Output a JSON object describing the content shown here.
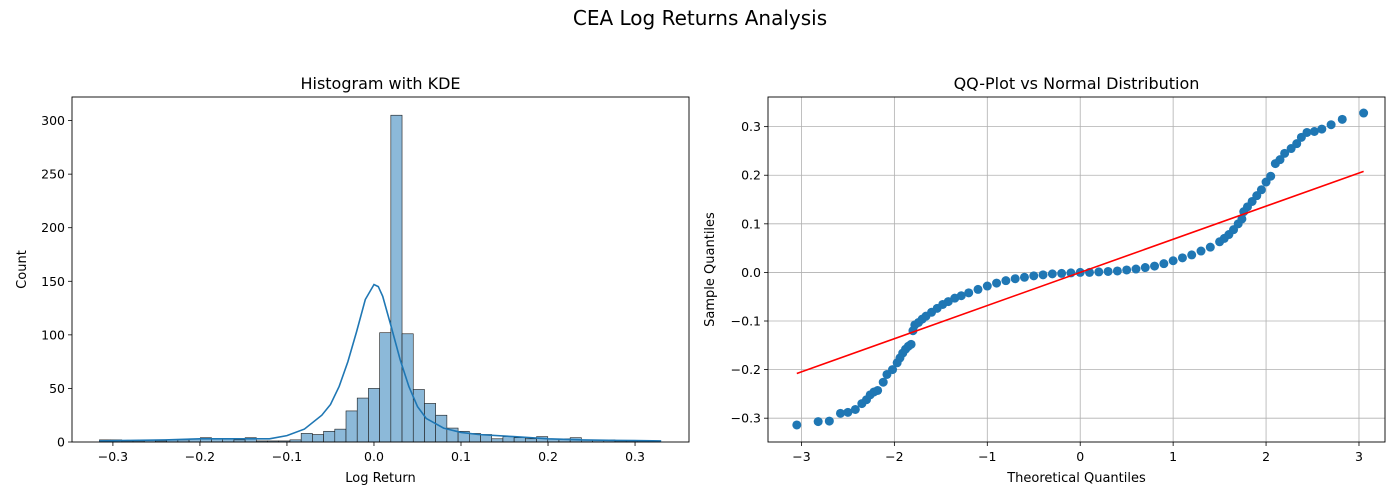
{
  "figure": {
    "title": "CEA Log Returns Analysis"
  },
  "colors": {
    "bar_fill": "#8cb9d9",
    "bar_edge": "#1a1a1a",
    "kde_line": "#1f77b4",
    "points": "#1f77b4",
    "ref_line": "#ff0000",
    "grid": "#b0b0b0"
  },
  "chart_data": [
    {
      "type": "bar",
      "subtype": "histogram-with-kde",
      "title": "Histogram with KDE",
      "xlabel": "Log Return",
      "ylabel": "Count",
      "xlim": [
        -0.347,
        0.362
      ],
      "ylim": [
        0,
        322
      ],
      "xticks": [
        -0.3,
        -0.2,
        -0.1,
        0.0,
        0.1,
        0.2,
        0.3
      ],
      "xtick_labels": [
        "−0.3",
        "−0.2",
        "−0.1",
        "0.0",
        "0.1",
        "0.2",
        "0.3"
      ],
      "yticks": [
        0,
        50,
        100,
        150,
        200,
        250,
        300
      ],
      "ytick_labels": [
        "0",
        "50",
        "100",
        "150",
        "200",
        "250",
        "300"
      ],
      "grid": false,
      "bin_start": -0.3155,
      "bin_width": 0.01288,
      "counts": [
        2,
        2,
        1,
        1,
        2,
        1,
        2,
        2,
        3,
        4,
        3,
        3,
        2,
        4,
        1,
        1,
        1,
        2,
        8,
        7,
        10,
        12,
        29,
        41,
        50,
        102,
        305,
        101,
        49,
        36,
        25,
        13,
        10,
        8,
        7,
        3,
        5,
        4,
        3,
        5,
        3,
        3,
        4,
        2,
        2,
        2,
        1,
        1,
        1,
        1
      ],
      "kde": {
        "x": [
          -0.3155,
          -0.28,
          -0.24,
          -0.2,
          -0.16,
          -0.12,
          -0.1,
          -0.08,
          -0.06,
          -0.05,
          -0.04,
          -0.03,
          -0.02,
          -0.01,
          0.0,
          0.005,
          0.01,
          0.02,
          0.03,
          0.04,
          0.05,
          0.06,
          0.08,
          0.1,
          0.12,
          0.16,
          0.2,
          0.24,
          0.28,
          0.33
        ],
        "y": [
          1,
          1.5,
          2,
          3,
          3,
          3,
          6,
          12,
          25,
          35,
          52,
          75,
          103,
          133,
          147,
          145,
          136,
          107,
          77,
          52,
          33,
          22,
          13,
          9,
          7,
          5,
          3,
          2,
          1.5,
          1
        ]
      }
    },
    {
      "type": "scatter",
      "subtype": "qq-plot",
      "title": "QQ-Plot vs Normal Distribution",
      "xlabel": "Theoretical Quantiles",
      "ylabel": "Sample Quantiles",
      "xlim": [
        -3.36,
        3.28
      ],
      "ylim": [
        -0.349,
        0.361
      ],
      "xticks": [
        -3,
        -2,
        -1,
        0,
        1,
        2,
        3
      ],
      "xtick_labels": [
        "−3",
        "−2",
        "−1",
        "0",
        "1",
        "2",
        "3"
      ],
      "yticks": [
        -0.3,
        -0.2,
        -0.1,
        0.0,
        0.1,
        0.2,
        0.3
      ],
      "ytick_labels": [
        "−0.3",
        "−0.2",
        "−0.1",
        "0.0",
        "0.1",
        "0.2",
        "0.3"
      ],
      "grid": true,
      "reference_line": {
        "x": [
          -3.05,
          3.05
        ],
        "y": [
          -0.208,
          0.208
        ]
      },
      "curve_points": [
        [
          -3.05,
          -0.314
        ],
        [
          -2.82,
          -0.307
        ],
        [
          -2.7,
          -0.306
        ],
        [
          -2.58,
          -0.29
        ],
        [
          -2.5,
          -0.288
        ],
        [
          -2.42,
          -0.282
        ],
        [
          -2.35,
          -0.27
        ],
        [
          -2.3,
          -0.262
        ],
        [
          -2.26,
          -0.252
        ],
        [
          -2.22,
          -0.246
        ],
        [
          -2.18,
          -0.243
        ],
        [
          -2.12,
          -0.226
        ],
        [
          -2.08,
          -0.21
        ],
        [
          -2.02,
          -0.2
        ],
        [
          -1.97,
          -0.186
        ],
        [
          -1.94,
          -0.176
        ],
        [
          -1.91,
          -0.166
        ],
        [
          -1.88,
          -0.158
        ],
        [
          -1.85,
          -0.152
        ],
        [
          -1.82,
          -0.148
        ],
        [
          -1.8,
          -0.12
        ],
        [
          -1.78,
          -0.108
        ],
        [
          -1.74,
          -0.103
        ],
        [
          -1.7,
          -0.096
        ],
        [
          -1.66,
          -0.09
        ],
        [
          -1.6,
          -0.082
        ],
        [
          -1.54,
          -0.074
        ],
        [
          -1.48,
          -0.066
        ],
        [
          -1.42,
          -0.06
        ],
        [
          -1.35,
          -0.053
        ],
        [
          -1.28,
          -0.048
        ],
        [
          -1.2,
          -0.042
        ],
        [
          -1.1,
          -0.035
        ],
        [
          -1.0,
          -0.028
        ],
        [
          -0.9,
          -0.022
        ],
        [
          -0.8,
          -0.017
        ],
        [
          -0.7,
          -0.013
        ],
        [
          -0.6,
          -0.01
        ],
        [
          -0.5,
          -0.007
        ],
        [
          -0.4,
          -0.005
        ],
        [
          -0.3,
          -0.003
        ],
        [
          -0.2,
          -0.002
        ],
        [
          -0.1,
          -0.001
        ],
        [
          0.0,
          0.0
        ],
        [
          0.1,
          0.0
        ],
        [
          0.2,
          0.001
        ],
        [
          0.3,
          0.002
        ],
        [
          0.4,
          0.003
        ],
        [
          0.5,
          0.005
        ],
        [
          0.6,
          0.007
        ],
        [
          0.7,
          0.01
        ],
        [
          0.8,
          0.013
        ],
        [
          0.9,
          0.018
        ],
        [
          1.0,
          0.024
        ],
        [
          1.1,
          0.03
        ],
        [
          1.2,
          0.036
        ],
        [
          1.3,
          0.044
        ],
        [
          1.4,
          0.052
        ],
        [
          1.5,
          0.063
        ],
        [
          1.55,
          0.07
        ],
        [
          1.6,
          0.078
        ],
        [
          1.65,
          0.088
        ],
        [
          1.7,
          0.1
        ],
        [
          1.74,
          0.11
        ],
        [
          1.76,
          0.125
        ],
        [
          1.8,
          0.135
        ],
        [
          1.85,
          0.146
        ],
        [
          1.9,
          0.158
        ],
        [
          1.95,
          0.17
        ],
        [
          2.0,
          0.186
        ],
        [
          2.05,
          0.198
        ],
        [
          2.1,
          0.224
        ],
        [
          2.15,
          0.232
        ],
        [
          2.2,
          0.245
        ],
        [
          2.27,
          0.255
        ],
        [
          2.33,
          0.265
        ],
        [
          2.38,
          0.278
        ],
        [
          2.44,
          0.288
        ],
        [
          2.52,
          0.29
        ],
        [
          2.6,
          0.295
        ],
        [
          2.7,
          0.304
        ],
        [
          2.82,
          0.315
        ],
        [
          3.05,
          0.328
        ]
      ]
    }
  ]
}
